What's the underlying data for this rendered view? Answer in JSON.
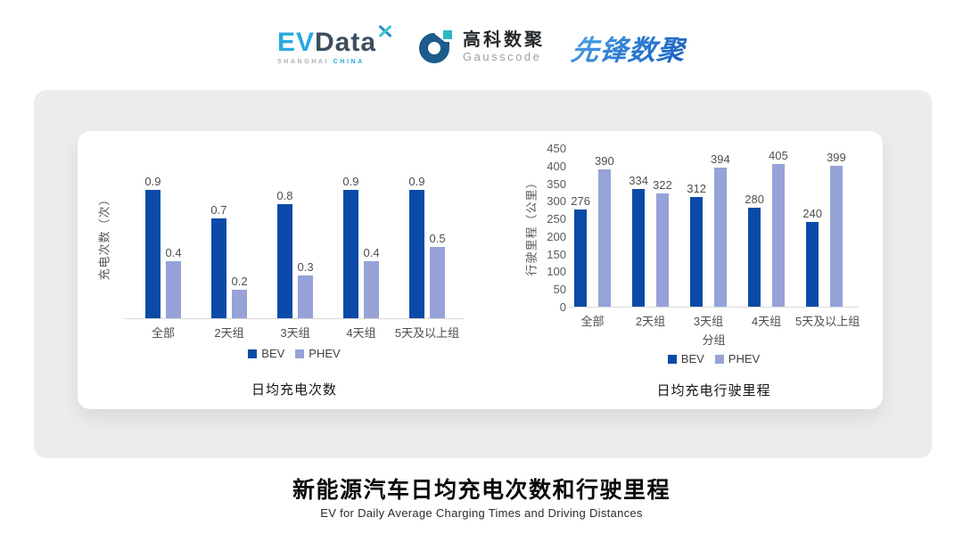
{
  "header": {
    "evdata": {
      "part1": "EV",
      "part2": "Data",
      "sub1": "SHANGHAI",
      "sub2": "CHINA"
    },
    "gausscode": {
      "name_cn": "高科数聚",
      "name_en": "Gausscode"
    },
    "pioneer": {
      "name": "先锋数聚"
    }
  },
  "colors": {
    "bev": "#0b4aa8",
    "phev": "#96a2d8",
    "evdata_blue": "#29a9e0",
    "evdata_dark": "#3d4e60",
    "gausscode_blue": "#1d5b8c",
    "gausscode_teal": "#2bb8c4",
    "pioneer_blue": "#2f7fd4",
    "panel_gray": "#ececec",
    "baseline_gray": "#d9d9d9"
  },
  "chart_data": [
    {
      "type": "bar",
      "title": "日均充电次数",
      "ylabel": "充电次数（次）",
      "xlabel": "",
      "categories": [
        "全部",
        "2天组",
        "3天组",
        "4天组",
        "5天及以上组"
      ],
      "series": [
        {
          "name": "BEV",
          "values": [
            0.9,
            0.7,
            0.8,
            0.9,
            0.9
          ],
          "labels": [
            "0.9",
            "0.7",
            "0.8",
            "0.9",
            "0.9"
          ]
        },
        {
          "name": "PHEV",
          "values": [
            0.4,
            0.2,
            0.3,
            0.4,
            0.5
          ],
          "labels": [
            "0.4",
            "0.2",
            "0.3",
            "0.4",
            "0.5"
          ]
        }
      ],
      "ylim": [
        0,
        1.0
      ],
      "yticks": [],
      "grid": false,
      "legend_position": "bottom"
    },
    {
      "type": "bar",
      "title": "日均充电行驶里程",
      "ylabel": "行驶里程（公里）",
      "xlabel": "分组",
      "categories": [
        "全部",
        "2天组",
        "3天组",
        "4天组",
        "5天及以上组"
      ],
      "series": [
        {
          "name": "BEV",
          "values": [
            276,
            334,
            312,
            280,
            240
          ],
          "labels": [
            "276",
            "334",
            "312",
            "280",
            "240"
          ]
        },
        {
          "name": "PHEV",
          "values": [
            390,
            322,
            394,
            405,
            399
          ],
          "labels": [
            "390",
            "322",
            "394",
            "405",
            "399"
          ]
        }
      ],
      "ylim": [
        0,
        450
      ],
      "yticks": [
        450,
        400,
        350,
        300,
        250,
        200,
        150,
        100,
        50,
        0
      ],
      "grid": false,
      "legend_position": "bottom"
    }
  ],
  "footer": {
    "title": "新能源汽车日均充电次数和行驶里程",
    "subtitle": "EV for Daily Average Charging Times and Driving Distances"
  }
}
